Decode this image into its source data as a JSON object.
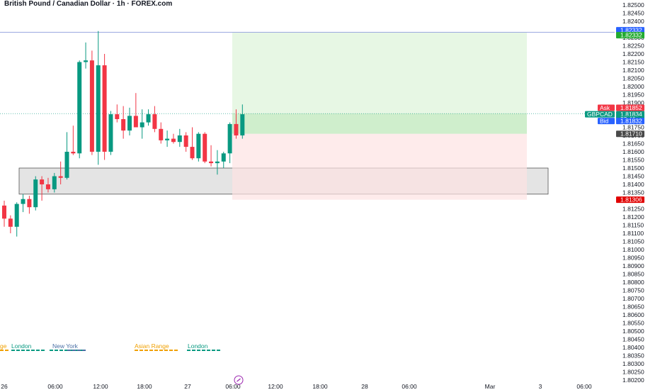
{
  "header": {
    "title": "British Pound / Canadian Dollar · 1h · FOREX.com"
  },
  "colors": {
    "up": "#089981",
    "down": "#f23645",
    "profit_zone": "#e4f6e1",
    "profit_zone_dark": "#c9ebc6",
    "loss_zone": "#fde3e3",
    "support_box": "#e4e4e4",
    "level_line": "#7b8bd6",
    "ask": "#f23645",
    "bid": "#2962ff",
    "symbol": "#089981",
    "tp": "#22ab30",
    "sl": "#e00000",
    "current": "#4a4a4a",
    "london": "#089981",
    "new_york": "#4a6fa5",
    "asian_range": "#f0a000"
  },
  "chart_data": {
    "type": "candlestick",
    "symbol": "GBPCAD",
    "timeframe": "1h",
    "y_range": [
      1.802,
      1.825
    ],
    "y_ticks": [
      "1.82500",
      "1.82450",
      "1.82400",
      "1.82350",
      "1.82300",
      "1.82250",
      "1.82200",
      "1.82150",
      "1.82100",
      "1.82050",
      "1.82000",
      "1.81950",
      "1.81900",
      "1.81850",
      "1.81800",
      "1.81750",
      "1.81700",
      "1.81650",
      "1.81600",
      "1.81550",
      "1.81500",
      "1.81450",
      "1.81400",
      "1.81350",
      "1.81300",
      "1.81250",
      "1.81200",
      "1.81150",
      "1.81100",
      "1.81050",
      "1.81000",
      "1.80950",
      "1.80900",
      "1.80850",
      "1.80800",
      "1.80750",
      "1.80700",
      "1.80650",
      "1.80600",
      "1.80550",
      "1.80500",
      "1.80450",
      "1.80400",
      "1.80350",
      "1.80300",
      "1.80250",
      "1.80200"
    ],
    "x_ticks": [
      "26",
      "06:00",
      "12:00",
      "18:00",
      "27",
      "06:00",
      "12:00",
      "18:00",
      "28",
      "06:00",
      "Mar",
      "3",
      "06:00"
    ],
    "candles": [
      {
        "o": 1.8127,
        "h": 1.813,
        "l": 1.8114,
        "c": 1.8119
      },
      {
        "o": 1.8119,
        "h": 1.8121,
        "l": 1.811,
        "c": 1.8114
      },
      {
        "o": 1.8114,
        "h": 1.8129,
        "l": 1.8108,
        "c": 1.8128
      },
      {
        "o": 1.8128,
        "h": 1.8134,
        "l": 1.8123,
        "c": 1.8131
      },
      {
        "o": 1.8131,
        "h": 1.8133,
        "l": 1.8122,
        "c": 1.8126
      },
      {
        "o": 1.8126,
        "h": 1.8145,
        "l": 1.8124,
        "c": 1.8143
      },
      {
        "o": 1.8143,
        "h": 1.8145,
        "l": 1.813,
        "c": 1.814
      },
      {
        "o": 1.814,
        "h": 1.8144,
        "l": 1.8135,
        "c": 1.8137
      },
      {
        "o": 1.8137,
        "h": 1.8147,
        "l": 1.8135,
        "c": 1.8145
      },
      {
        "o": 1.8145,
        "h": 1.8154,
        "l": 1.814,
        "c": 1.8144
      },
      {
        "o": 1.8144,
        "h": 1.8172,
        "l": 1.8143,
        "c": 1.816
      },
      {
        "o": 1.816,
        "h": 1.8176,
        "l": 1.8158,
        "c": 1.8159
      },
      {
        "o": 1.8159,
        "h": 1.8216,
        "l": 1.8156,
        "c": 1.8215
      },
      {
        "o": 1.8215,
        "h": 1.8227,
        "l": 1.8211,
        "c": 1.8216
      },
      {
        "o": 1.8216,
        "h": 1.8222,
        "l": 1.8158,
        "c": 1.816
      },
      {
        "o": 1.816,
        "h": 1.8234,
        "l": 1.8152,
        "c": 1.8213
      },
      {
        "o": 1.8213,
        "h": 1.822,
        "l": 1.8155,
        "c": 1.816
      },
      {
        "o": 1.816,
        "h": 1.8185,
        "l": 1.8158,
        "c": 1.8183
      },
      {
        "o": 1.8183,
        "h": 1.8189,
        "l": 1.8178,
        "c": 1.818
      },
      {
        "o": 1.818,
        "h": 1.8188,
        "l": 1.8168,
        "c": 1.8173
      },
      {
        "o": 1.8173,
        "h": 1.8187,
        "l": 1.817,
        "c": 1.8182
      },
      {
        "o": 1.8182,
        "h": 1.8196,
        "l": 1.8175,
        "c": 1.8175
      },
      {
        "o": 1.8175,
        "h": 1.8186,
        "l": 1.8168,
        "c": 1.8178
      },
      {
        "o": 1.8178,
        "h": 1.8186,
        "l": 1.8176,
        "c": 1.8183
      },
      {
        "o": 1.8183,
        "h": 1.8188,
        "l": 1.8172,
        "c": 1.8174
      },
      {
        "o": 1.8174,
        "h": 1.8178,
        "l": 1.8165,
        "c": 1.8167
      },
      {
        "o": 1.8167,
        "h": 1.8173,
        "l": 1.8163,
        "c": 1.8168
      },
      {
        "o": 1.8168,
        "h": 1.8171,
        "l": 1.8165,
        "c": 1.8166
      },
      {
        "o": 1.8166,
        "h": 1.8174,
        "l": 1.8163,
        "c": 1.817
      },
      {
        "o": 1.817,
        "h": 1.8172,
        "l": 1.816,
        "c": 1.8163
      },
      {
        "o": 1.8163,
        "h": 1.8175,
        "l": 1.8155,
        "c": 1.8156
      },
      {
        "o": 1.8156,
        "h": 1.8172,
        "l": 1.8154,
        "c": 1.8171
      },
      {
        "o": 1.8171,
        "h": 1.8172,
        "l": 1.8153,
        "c": 1.8154
      },
      {
        "o": 1.8154,
        "h": 1.8164,
        "l": 1.8151,
        "c": 1.8153
      },
      {
        "o": 1.8153,
        "h": 1.8161,
        "l": 1.8146,
        "c": 1.8154
      },
      {
        "o": 1.8154,
        "h": 1.816,
        "l": 1.815,
        "c": 1.8159
      },
      {
        "o": 1.8159,
        "h": 1.8178,
        "l": 1.8153,
        "c": 1.8177
      },
      {
        "o": 1.8177,
        "h": 1.8186,
        "l": 1.8168,
        "c": 1.817
      },
      {
        "o": 1.817,
        "h": 1.8189,
        "l": 1.8168,
        "c": 1.8183
      }
    ],
    "support_zone": [
      1.8134,
      1.815
    ],
    "level_line": 1.82332,
    "position": {
      "entry": 1.8171,
      "take_profit": 1.82332,
      "stop_loss": 1.81306
    },
    "price_tags": [
      {
        "label": "",
        "text": "1.82332",
        "kind": "bid"
      },
      {
        "label": "",
        "text": "1.82332",
        "kind": "tp"
      },
      {
        "label": "Ask",
        "text": "1.81852",
        "kind": "ask"
      },
      {
        "label": "GBPCAD",
        "text": "1.81834",
        "kind": "symbol"
      },
      {
        "label": "",
        "text": "33:46",
        "kind": "symbol"
      },
      {
        "label": "Bid",
        "text": "1.81832",
        "kind": "bid"
      },
      {
        "label": "",
        "text": "1.81710",
        "kind": "current"
      },
      {
        "label": "",
        "text": "1.81306",
        "kind": "sl"
      }
    ],
    "sessions": [
      {
        "text": "ge",
        "color": "asian_range"
      },
      {
        "text": "London",
        "color": "london"
      },
      {
        "text": "New York",
        "color": "new_york"
      },
      {
        "text": "Asian Range",
        "color": "asian_range"
      },
      {
        "text": "London",
        "color": "london"
      }
    ]
  }
}
